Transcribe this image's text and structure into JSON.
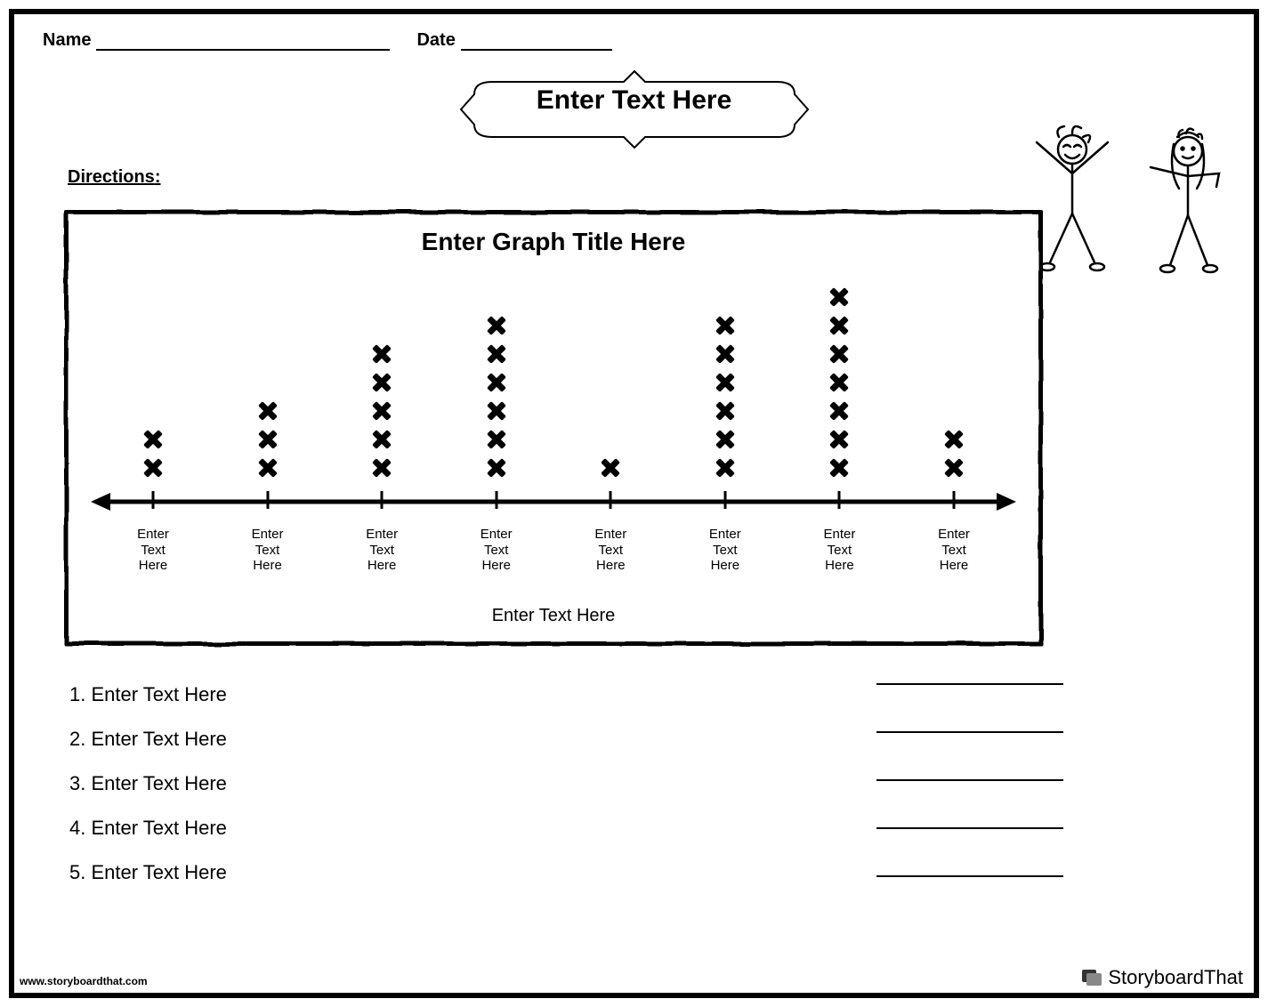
{
  "header": {
    "name_label": "Name",
    "date_label": "Date"
  },
  "title_banner": "Enter Text Here",
  "directions_label": "Directions",
  "chart": {
    "type": "line-plot",
    "graph_title": "Enter Graph Title Here",
    "axis_label": "Enter Text Here",
    "marker_style": "x",
    "marker_color": "#000000",
    "border_color": "#000000",
    "background_color": "#ffffff",
    "columns": [
      {
        "label": "Enter\nText\nHere",
        "value": 2
      },
      {
        "label": "Enter\nText\nHere",
        "value": 3
      },
      {
        "label": "Enter\nText\nHere",
        "value": 5
      },
      {
        "label": "Enter\nText\nHere",
        "value": 6
      },
      {
        "label": "Enter\nText\nHere",
        "value": 1
      },
      {
        "label": "Enter\nText\nHere",
        "value": 6
      },
      {
        "label": "Enter\nText\nHere",
        "value": 7
      },
      {
        "label": "Enter\nText\nHere",
        "value": 2
      }
    ]
  },
  "questions": {
    "items": [
      "Enter Text Here",
      "Enter Text Here",
      "Enter Text Here",
      "Enter Text Here",
      "Enter Text Here"
    ]
  },
  "footer": {
    "url": "www.storyboardthat.com",
    "brand": "StoryboardThat"
  },
  "colors": {
    "text": "#000000",
    "border": "#000000"
  }
}
